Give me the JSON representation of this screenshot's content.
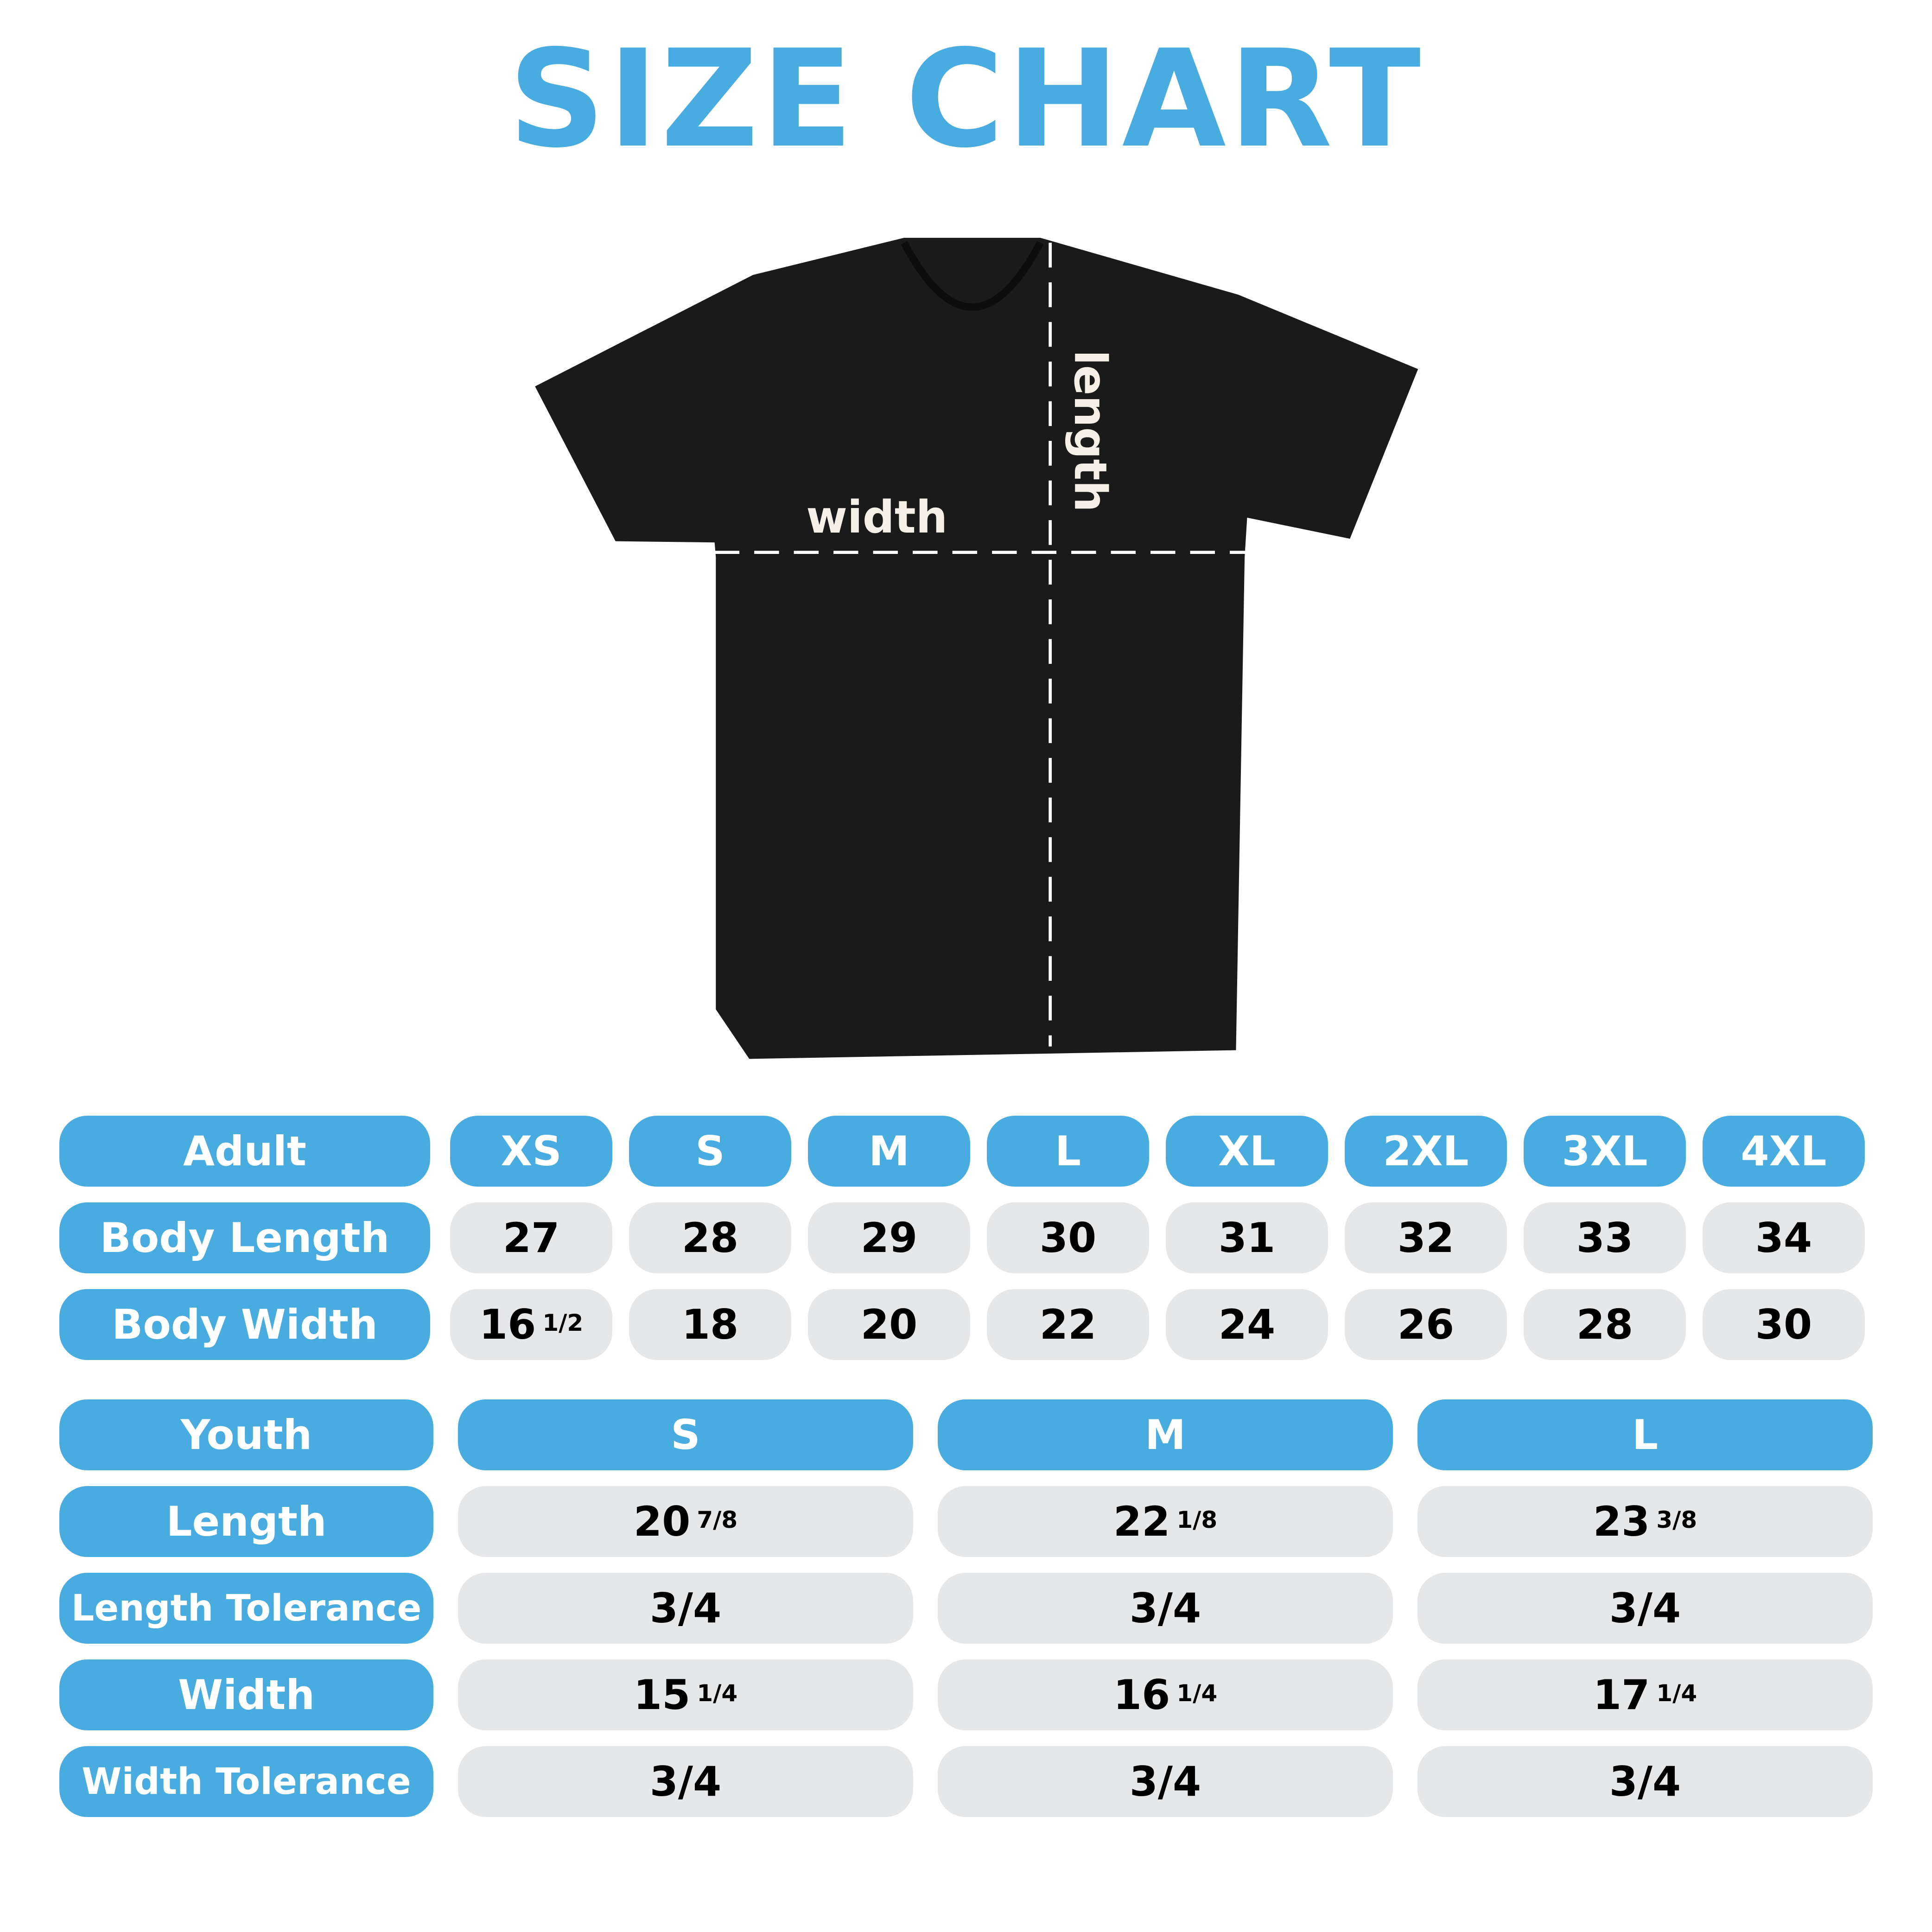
{
  "title": "SIZE CHART",
  "colors": {
    "accent": "#48ace0",
    "cell": "#e6e7e9",
    "shirt": "#1a1a1a"
  },
  "diagram": {
    "width_label": "width",
    "length_label": "length"
  },
  "adult": {
    "header": "Adult",
    "sizes": [
      "XS",
      "S",
      "M",
      "L",
      "XL",
      "2XL",
      "3XL",
      "4XL"
    ],
    "rows": [
      {
        "label": "Body Length",
        "values": [
          {
            "whole": "27",
            "frac": ""
          },
          {
            "whole": "28",
            "frac": ""
          },
          {
            "whole": "29",
            "frac": ""
          },
          {
            "whole": "30",
            "frac": ""
          },
          {
            "whole": "31",
            "frac": ""
          },
          {
            "whole": "32",
            "frac": ""
          },
          {
            "whole": "33",
            "frac": ""
          },
          {
            "whole": "34",
            "frac": ""
          }
        ]
      },
      {
        "label": "Body Width",
        "values": [
          {
            "whole": "16",
            "frac": "1/2"
          },
          {
            "whole": "18",
            "frac": ""
          },
          {
            "whole": "20",
            "frac": ""
          },
          {
            "whole": "22",
            "frac": ""
          },
          {
            "whole": "24",
            "frac": ""
          },
          {
            "whole": "26",
            "frac": ""
          },
          {
            "whole": "28",
            "frac": ""
          },
          {
            "whole": "30",
            "frac": ""
          }
        ]
      }
    ]
  },
  "youth": {
    "header": "Youth",
    "sizes": [
      "S",
      "M",
      "L"
    ],
    "rows": [
      {
        "label": "Length",
        "values": [
          {
            "whole": "20",
            "frac": "7/8"
          },
          {
            "whole": "22",
            "frac": "1/8"
          },
          {
            "whole": "23",
            "frac": "3/8"
          }
        ]
      },
      {
        "label": "Length Tolerance",
        "values": [
          {
            "whole": "3/4",
            "frac": ""
          },
          {
            "whole": "3/4",
            "frac": ""
          },
          {
            "whole": "3/4",
            "frac": ""
          }
        ]
      },
      {
        "label": "Width",
        "values": [
          {
            "whole": "15",
            "frac": "1/4"
          },
          {
            "whole": "16",
            "frac": "1/4"
          },
          {
            "whole": "17",
            "frac": "1/4"
          }
        ]
      },
      {
        "label": "Width Tolerance",
        "values": [
          {
            "whole": "3/4",
            "frac": ""
          },
          {
            "whole": "3/4",
            "frac": ""
          },
          {
            "whole": "3/4",
            "frac": ""
          }
        ]
      }
    ]
  }
}
